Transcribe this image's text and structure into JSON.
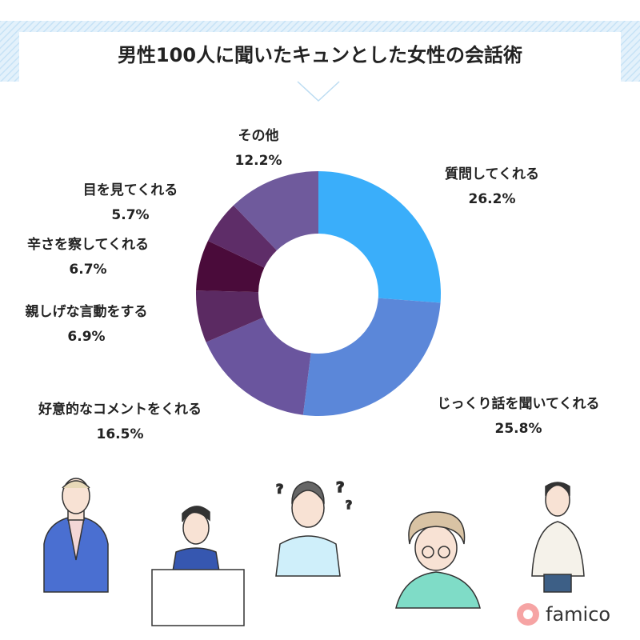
{
  "chart_data": {
    "type": "pie",
    "title": "男性100人に聞いたキュンとした女性の会話術",
    "categories": [
      "質問してくれる",
      "じっくり話を聞いてくれる",
      "好意的なコメントをくれる",
      "親しげな言動をする",
      "辛さを察してくれる",
      "目を見てくれる",
      "その他"
    ],
    "values": [
      26.2,
      25.8,
      16.5,
      6.9,
      6.7,
      5.7,
      12.2
    ],
    "value_labels": [
      "26.2%",
      "25.8%",
      "16.5%",
      "6.9%",
      "6.7%",
      "5.7%",
      "12.2%"
    ],
    "colors": [
      "#3aaefa",
      "#5b87d9",
      "#6a559e",
      "#5b2a62",
      "#4a0b3a",
      "#5e2d68",
      "#6f5a9c"
    ],
    "donut": true
  },
  "brand": "famico"
}
